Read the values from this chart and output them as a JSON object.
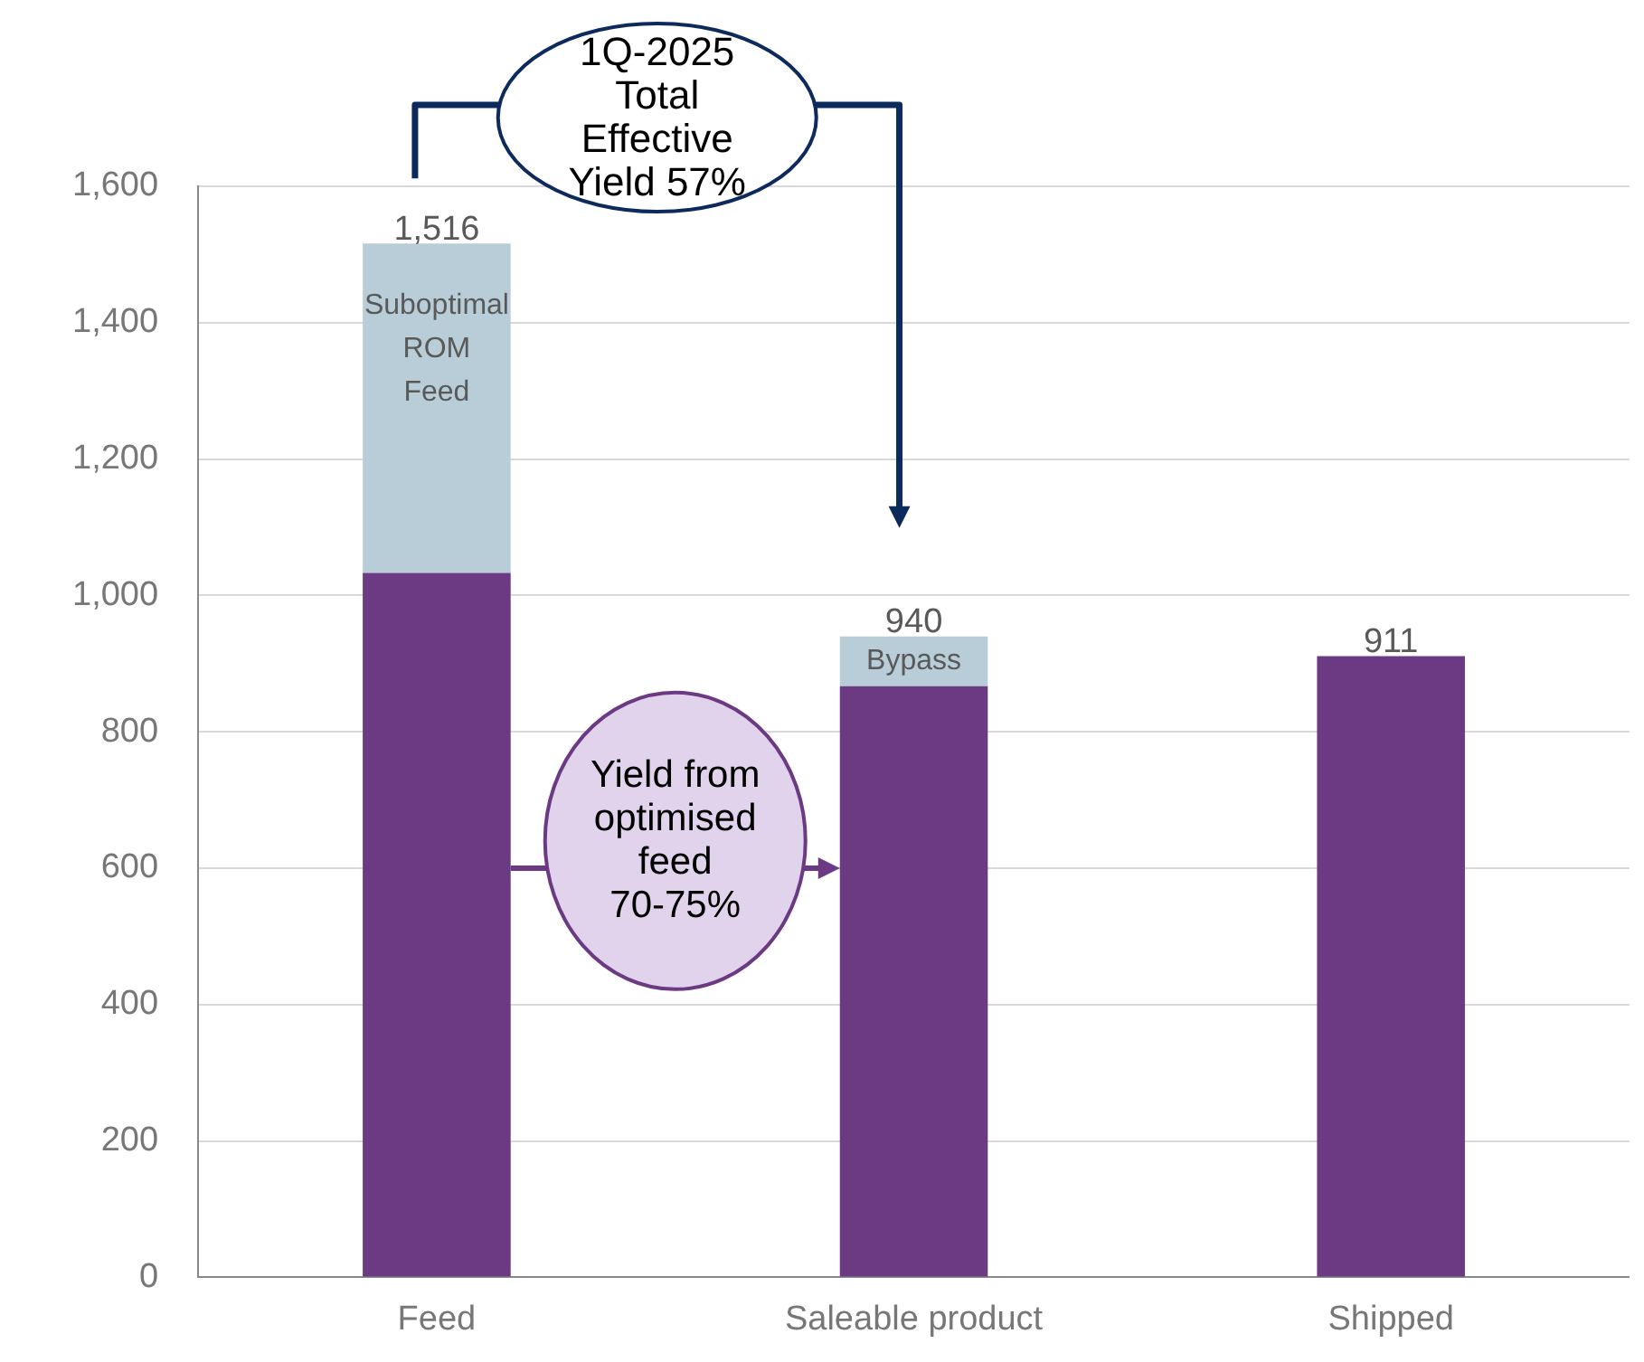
{
  "chart_data": {
    "type": "bar",
    "stacked": true,
    "categories": [
      "Feed",
      "Saleable product",
      "Shipped"
    ],
    "series": [
      {
        "color": "#6b3a82",
        "values": [
          1033,
          867,
          911
        ]
      },
      {
        "color": "#b8cdd8",
        "values": [
          483,
          73,
          null
        ]
      }
    ],
    "totals": [
      "1,516",
      "940",
      "911"
    ],
    "ylim": [
      0,
      1600
    ],
    "yticks": [
      {
        "value": 0,
        "label": "0"
      },
      {
        "value": 200,
        "label": "200"
      },
      {
        "value": 400,
        "label": "400"
      },
      {
        "value": 600,
        "label": "600"
      },
      {
        "value": 800,
        "label": "800"
      },
      {
        "value": 1000,
        "label": "1,000"
      },
      {
        "value": 1200,
        "label": "1,200"
      },
      {
        "value": 1400,
        "label": "1,400"
      },
      {
        "value": 1600,
        "label": "1,600"
      }
    ],
    "grid": "y",
    "legend": false,
    "annotations": [
      "Suboptimal ROM Feed",
      "Bypass",
      "1Q-2025 Total Effective Yield 57%",
      "Yield from optimised feed 70-75%"
    ]
  }
}
